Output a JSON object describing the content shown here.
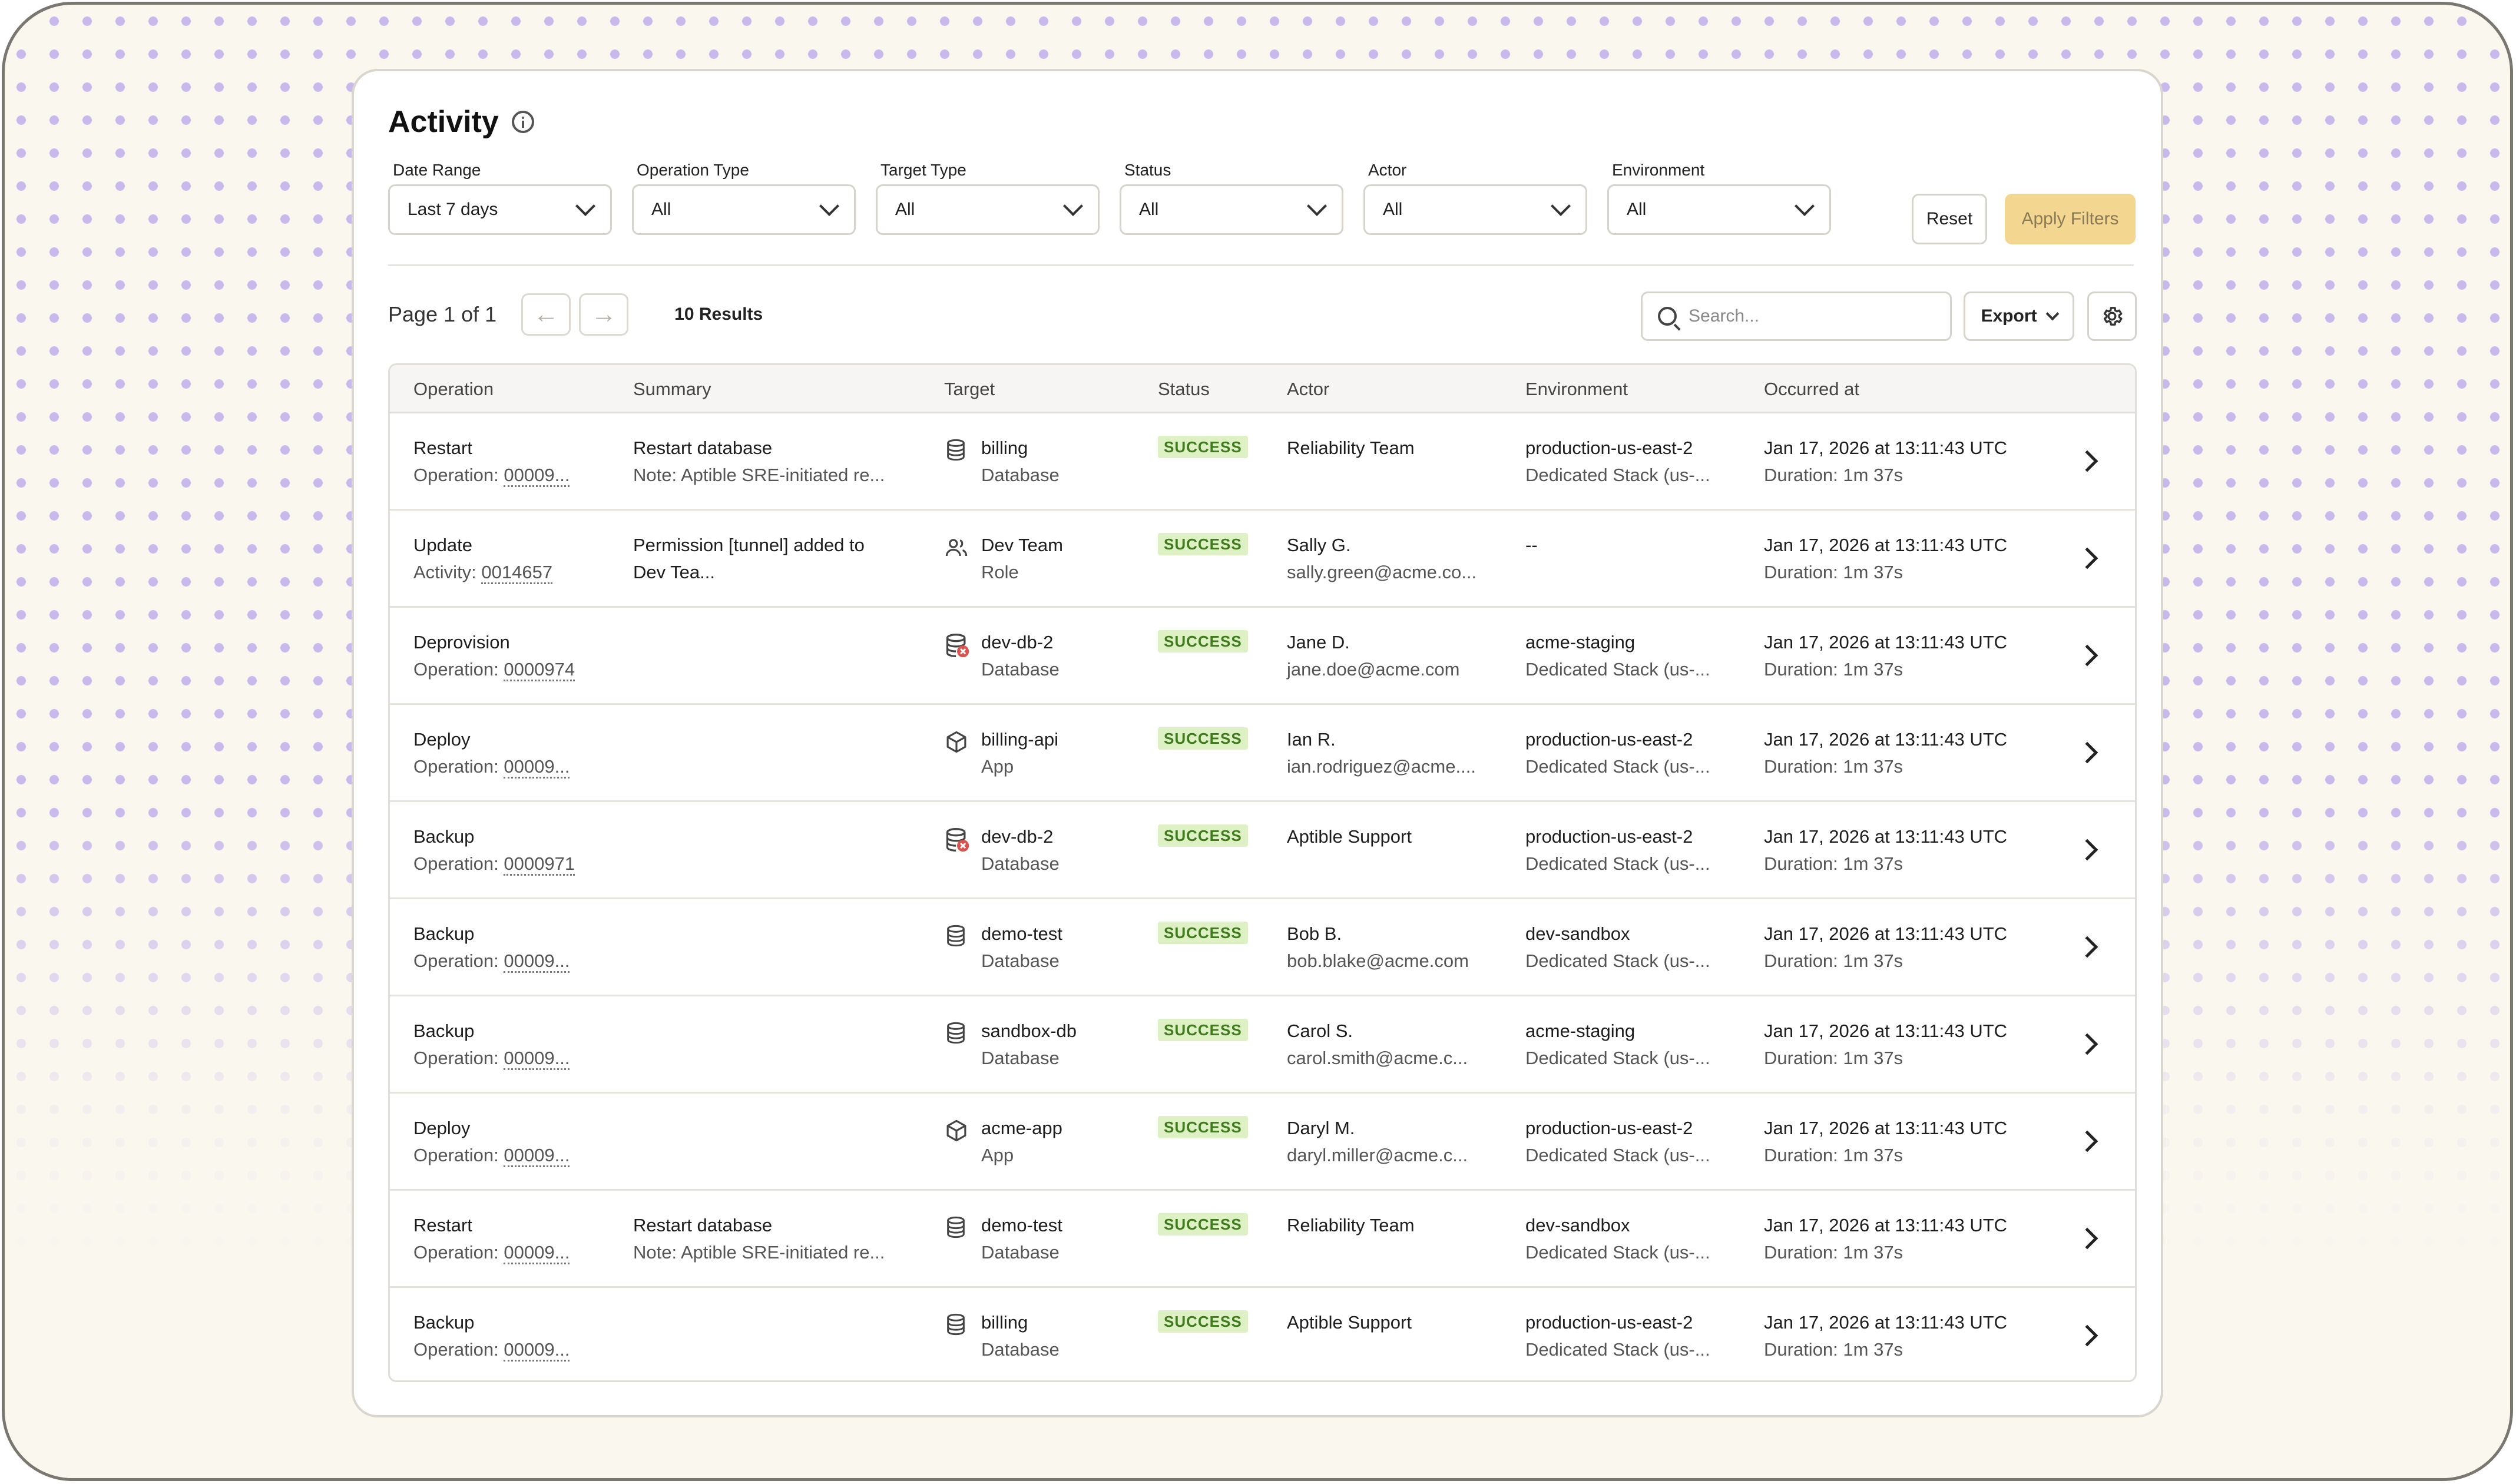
{
  "page": {
    "title": "Activity"
  },
  "filters": [
    {
      "label": "Date Range",
      "value": "Last 7 days"
    },
    {
      "label": "Operation Type",
      "value": "All"
    },
    {
      "label": "Target Type",
      "value": "All"
    },
    {
      "label": "Status",
      "value": "All"
    },
    {
      "label": "Actor",
      "value": "All"
    },
    {
      "label": "Environment",
      "value": "All"
    }
  ],
  "actions": {
    "reset": "Reset",
    "apply": "Apply Filters",
    "export": "Export"
  },
  "pager": {
    "page_text": "Page 1 of 1",
    "results": "10 Results",
    "prev": "←",
    "next": "→"
  },
  "search": {
    "placeholder": "Search..."
  },
  "colors": {
    "accent": "#f3d690",
    "success_bg": "#ddf1c4",
    "success_text": "#3f7a1c",
    "dot": "#c9b8ec"
  },
  "table": {
    "columns": [
      "Operation",
      "Summary",
      "Target",
      "Status",
      "Actor",
      "Environment",
      "Occurred at"
    ],
    "rows": [
      {
        "op": "Restart",
        "op_id_label": "Operation:",
        "op_id": "00009...",
        "summary": "Restart database",
        "summary2": "Note: Aptible SRE-initiated re...",
        "target_icon": "database-icon",
        "target": "billing",
        "target_type": "Database",
        "status": "SUCCESS",
        "actor": "Reliability Team",
        "actor2": "",
        "env": "production-us-east-2",
        "env2": "Dedicated Stack (us-...",
        "occurred": "Jan 17, 2026 at 13:11:43 UTC",
        "duration": "Duration: 1m 37s"
      },
      {
        "op": "Update",
        "op_id_label": "Activity:",
        "op_id": "0014657",
        "summary": "Permission [tunnel] added to",
        "summary2": "Dev Tea...",
        "target_icon": "users-icon",
        "target": "Dev Team",
        "target_type": "Role",
        "status": "SUCCESS",
        "actor": "Sally G.",
        "actor2": "sally.green@acme.co...",
        "env": "--",
        "env2": "",
        "occurred": "Jan 17, 2026 at 13:11:43 UTC",
        "duration": "Duration: 1m 37s"
      },
      {
        "op": "Deprovision",
        "op_id_label": "Operation:",
        "op_id": "0000974",
        "summary": "",
        "summary2": "",
        "target_icon": "database-deleted-icon",
        "target": "dev-db-2",
        "target_type": "Database",
        "status": "SUCCESS",
        "actor": "Jane D.",
        "actor2": "jane.doe@acme.com",
        "env": "acme-staging",
        "env2": "Dedicated Stack (us-...",
        "occurred": "Jan 17, 2026 at 13:11:43 UTC",
        "duration": "Duration: 1m 37s"
      },
      {
        "op": "Deploy",
        "op_id_label": "Operation:",
        "op_id": "00009...",
        "summary": "",
        "summary2": "",
        "target_icon": "cube-icon",
        "target": "billing-api",
        "target_type": "App",
        "status": "SUCCESS",
        "actor": "Ian R.",
        "actor2": "ian.rodriguez@acme....",
        "env": "production-us-east-2",
        "env2": "Dedicated Stack (us-...",
        "occurred": "Jan 17, 2026 at 13:11:43 UTC",
        "duration": "Duration: 1m 37s"
      },
      {
        "op": "Backup",
        "op_id_label": "Operation:",
        "op_id": "0000971",
        "summary": "",
        "summary2": "",
        "target_icon": "database-deleted-icon",
        "target": "dev-db-2",
        "target_type": "Database",
        "status": "SUCCESS",
        "actor": "Aptible Support",
        "actor2": "",
        "env": "production-us-east-2",
        "env2": "Dedicated Stack (us-...",
        "occurred": "Jan 17, 2026 at 13:11:43 UTC",
        "duration": "Duration: 1m 37s"
      },
      {
        "op": "Backup",
        "op_id_label": "Operation:",
        "op_id": "00009...",
        "summary": "",
        "summary2": "",
        "target_icon": "database-icon",
        "target": "demo-test",
        "target_type": "Database",
        "status": "SUCCESS",
        "actor": "Bob B.",
        "actor2": "bob.blake@acme.com",
        "env": "dev-sandbox",
        "env2": "Dedicated Stack (us-...",
        "occurred": "Jan 17, 2026 at 13:11:43 UTC",
        "duration": "Duration: 1m 37s"
      },
      {
        "op": "Backup",
        "op_id_label": "Operation:",
        "op_id": "00009...",
        "summary": "",
        "summary2": "",
        "target_icon": "database-icon",
        "target": "sandbox-db",
        "target_type": "Database",
        "status": "SUCCESS",
        "actor": "Carol S.",
        "actor2": "carol.smith@acme.c...",
        "env": "acme-staging",
        "env2": "Dedicated Stack (us-...",
        "occurred": "Jan 17, 2026 at 13:11:43 UTC",
        "duration": "Duration: 1m 37s"
      },
      {
        "op": "Deploy",
        "op_id_label": "Operation:",
        "op_id": "00009...",
        "summary": "",
        "summary2": "",
        "target_icon": "cube-icon",
        "target": "acme-app",
        "target_type": "App",
        "status": "SUCCESS",
        "actor": "Daryl M.",
        "actor2": "daryl.miller@acme.c...",
        "env": "production-us-east-2",
        "env2": "Dedicated Stack (us-...",
        "occurred": "Jan 17, 2026 at 13:11:43 UTC",
        "duration": "Duration: 1m 37s"
      },
      {
        "op": "Restart",
        "op_id_label": "Operation:",
        "op_id": "00009...",
        "summary": "Restart database",
        "summary2": "Note: Aptible SRE-initiated re...",
        "target_icon": "database-icon",
        "target": "demo-test",
        "target_type": "Database",
        "status": "SUCCESS",
        "actor": "Reliability Team",
        "actor2": "",
        "env": "dev-sandbox",
        "env2": "Dedicated Stack (us-...",
        "occurred": "Jan 17, 2026 at 13:11:43 UTC",
        "duration": "Duration: 1m 37s"
      },
      {
        "op": "Backup",
        "op_id_label": "Operation:",
        "op_id": "00009...",
        "summary": "",
        "summary2": "",
        "target_icon": "database-icon",
        "target": "billing",
        "target_type": "Database",
        "status": "SUCCESS",
        "actor": "Aptible Support",
        "actor2": "",
        "env": "production-us-east-2",
        "env2": "Dedicated Stack (us-...",
        "occurred": "Jan 17, 2026 at 13:11:43 UTC",
        "duration": "Duration: 1m 37s"
      }
    ]
  }
}
